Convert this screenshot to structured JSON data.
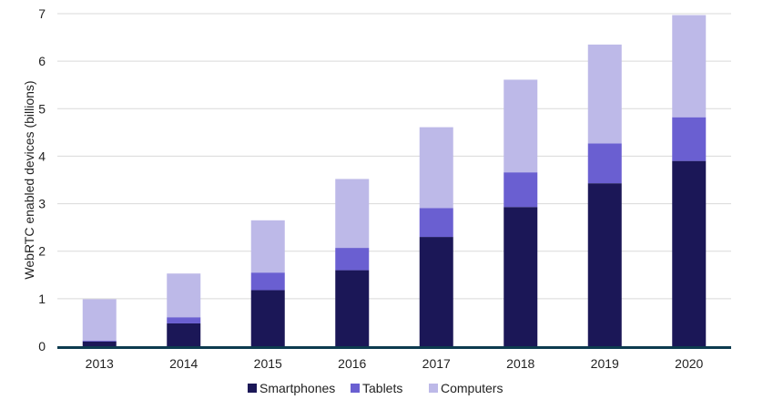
{
  "chart_data": {
    "type": "bar",
    "stacked": true,
    "title": "",
    "xlabel": "",
    "ylabel": "WebRTC enabled devices (billions)",
    "ylim": [
      0,
      7
    ],
    "yticks": [
      0,
      1,
      2,
      3,
      4,
      5,
      6,
      7
    ],
    "grid": true,
    "legend_position": "bottom",
    "categories": [
      "2013",
      "2014",
      "2015",
      "2016",
      "2017",
      "2018",
      "2019",
      "2020"
    ],
    "series": [
      {
        "name": "Smartphones",
        "color": "#1b1757",
        "values": [
          0.1,
          0.48,
          1.18,
          1.6,
          2.3,
          2.93,
          3.43,
          3.9
        ]
      },
      {
        "name": "Tablets",
        "color": "#6a5fd1",
        "values": [
          0.02,
          0.13,
          0.37,
          0.47,
          0.61,
          0.73,
          0.84,
          0.92
        ]
      },
      {
        "name": "Computers",
        "color": "#bdb9e8",
        "values": [
          0.87,
          0.92,
          1.1,
          1.45,
          1.7,
          1.95,
          2.08,
          2.15
        ]
      }
    ],
    "axis_color": "#0d3b4f",
    "grid_color": "#d9d9d9"
  }
}
